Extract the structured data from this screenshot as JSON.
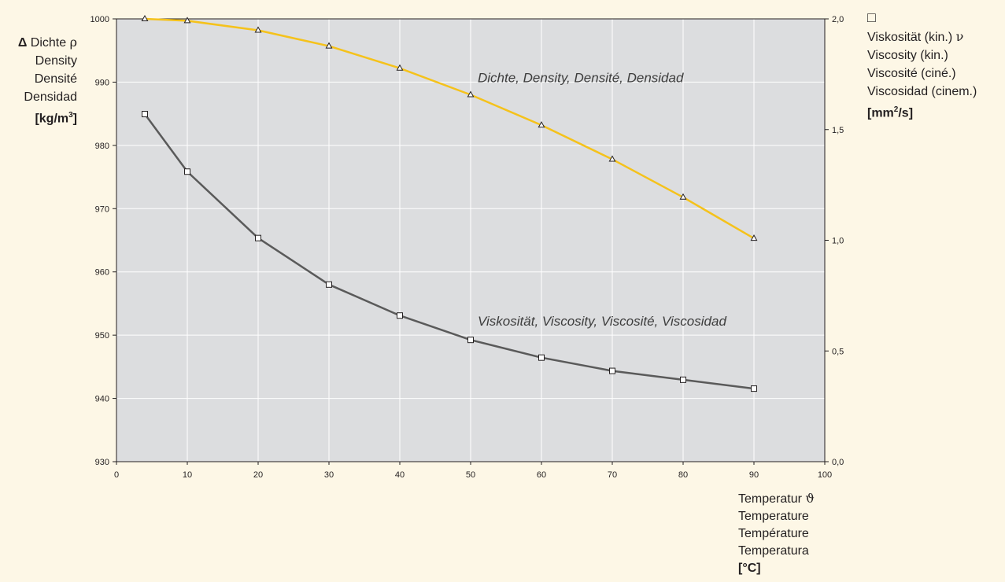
{
  "chart_data": {
    "type": "line",
    "x_axis": {
      "range": [
        0,
        100
      ],
      "ticks": [
        0,
        10,
        20,
        30,
        40,
        50,
        60,
        70,
        80,
        90,
        100
      ],
      "label_lines": [
        "Temperatur",
        "Temperature",
        "Température",
        "Temperatura"
      ],
      "symbol": "ϑ",
      "unit": "[°C]"
    },
    "y_left": {
      "range": [
        930,
        1000
      ],
      "ticks": [
        930,
        940,
        950,
        960,
        970,
        980,
        990,
        1000
      ],
      "marker_glyph": "Δ",
      "label_lines": [
        "Dichte",
        "Density",
        "Densité",
        "Densidad"
      ],
      "symbol": "ρ",
      "unit_base": "[kg/m",
      "unit_sup": "3",
      "unit_end": "]"
    },
    "y_right": {
      "range": [
        0,
        2
      ],
      "ticks": [
        "0,0",
        "0,5",
        "1,0",
        "1,5",
        "2,0"
      ],
      "marker_glyph": "□",
      "label_lines": [
        "Viskosität (kin.)",
        "Viscosity (kin.)",
        "Viscosité (ciné.)",
        "Viscosidad (cinem.)"
      ],
      "symbol": "ν",
      "unit_base": "[mm",
      "unit_sup": "2",
      "unit_end": "/s]"
    },
    "grid": true,
    "series": [
      {
        "name": "Dichte, Density, Densité, Densidad",
        "axis": "left",
        "marker": "triangle",
        "color": "#f5c21b",
        "x": [
          4,
          10,
          20,
          30,
          40,
          50,
          60,
          70,
          80,
          90
        ],
        "values": [
          1000.0,
          999.7,
          998.2,
          995.7,
          992.2,
          988.0,
          983.2,
          977.8,
          971.8,
          965.3
        ]
      },
      {
        "name": "Viskosität, Viscosity, Viscosité, Viscosidad",
        "axis": "right",
        "marker": "square",
        "color": "#5a5a5a",
        "x": [
          4,
          10,
          20,
          30,
          40,
          50,
          60,
          70,
          80,
          90
        ],
        "values": [
          1.57,
          1.31,
          1.01,
          0.8,
          0.66,
          0.55,
          0.47,
          0.41,
          0.37,
          0.33
        ]
      }
    ],
    "colors": {
      "page_background": "#fdf7e6",
      "plot_background": "#dcdddf",
      "grid": "#ffffff",
      "axis": "#231f20"
    }
  }
}
